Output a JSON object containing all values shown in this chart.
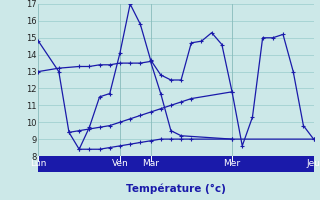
{
  "background_color": "#cce8e8",
  "grid_color": "#99cccc",
  "line_color": "#1a1aaa",
  "marker_color": "#1a1aaa",
  "xlabel": "Température (°c)",
  "xlabel_color": "#1a1aaa",
  "bottom_bar_color": "#1a1aaa",
  "bottom_text_color": "#ffffff",
  "ylim": [
    8,
    17
  ],
  "xlim": [
    0,
    27
  ],
  "yticks": [
    8,
    9,
    10,
    11,
    12,
    13,
    14,
    15,
    16,
    17
  ],
  "day_labels": [
    "Lun",
    "Ven",
    "Mar",
    "Mer",
    "Jeu"
  ],
  "day_positions": [
    0,
    8,
    11,
    19,
    27
  ],
  "series": [
    {
      "x": [
        0,
        2,
        3,
        4,
        5,
        6,
        7,
        8,
        9,
        10,
        11,
        12,
        13,
        14,
        15,
        16,
        17,
        18,
        19,
        20,
        21,
        22,
        23,
        24,
        25,
        26,
        27
      ],
      "y": [
        14.8,
        13.0,
        9.4,
        8.4,
        9.7,
        11.5,
        11.7,
        14.1,
        17.0,
        15.8,
        13.7,
        12.8,
        12.5,
        12.5,
        14.7,
        14.8,
        15.3,
        14.6,
        11.8,
        8.6,
        10.3,
        15.0,
        15.0,
        15.2,
        13.0,
        9.8,
        9.0
      ]
    },
    {
      "x": [
        0,
        2,
        4,
        5,
        6,
        7,
        8,
        9,
        10,
        11,
        12,
        13,
        14,
        19
      ],
      "y": [
        13.0,
        13.2,
        13.3,
        13.3,
        13.4,
        13.4,
        13.5,
        13.5,
        13.5,
        13.6,
        11.7,
        9.5,
        9.2,
        9.0
      ]
    },
    {
      "x": [
        3,
        4,
        5,
        6,
        7,
        8,
        9,
        10,
        11,
        12,
        13,
        14,
        15,
        19
      ],
      "y": [
        9.4,
        9.5,
        9.6,
        9.7,
        9.8,
        10.0,
        10.2,
        10.4,
        10.6,
        10.8,
        11.0,
        11.2,
        11.4,
        11.8
      ]
    },
    {
      "x": [
        4,
        5,
        6,
        7,
        8,
        9,
        10,
        11,
        12,
        13,
        14,
        15,
        19,
        27
      ],
      "y": [
        8.4,
        8.4,
        8.4,
        8.5,
        8.6,
        8.7,
        8.8,
        8.9,
        9.0,
        9.0,
        9.0,
        9.0,
        9.0,
        9.0
      ]
    }
  ]
}
